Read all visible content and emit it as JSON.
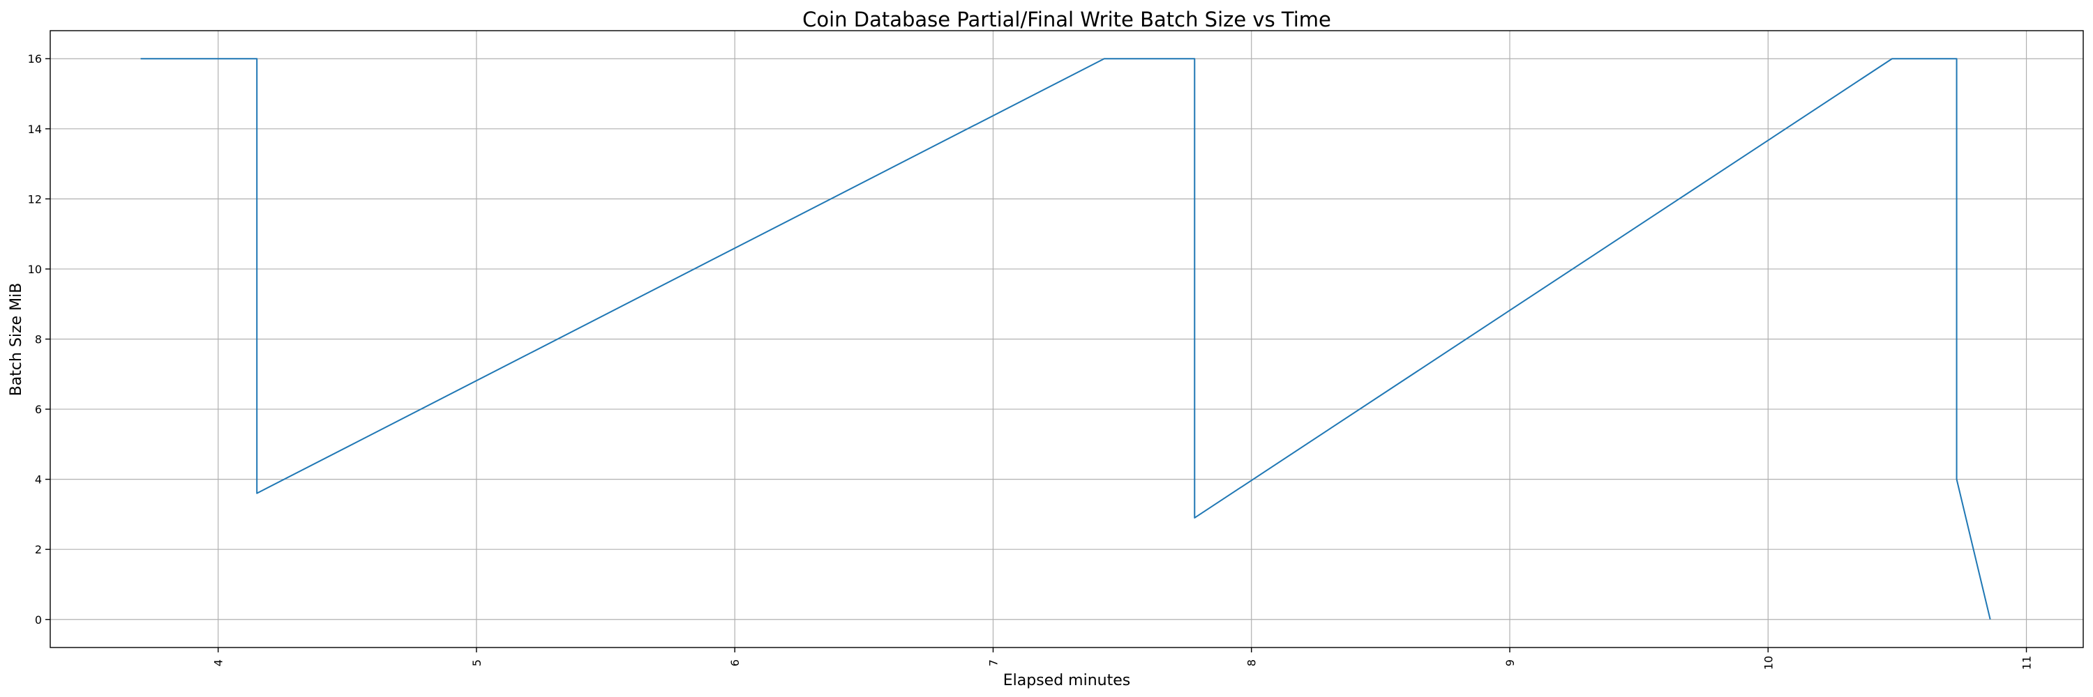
{
  "chart_data": {
    "type": "line",
    "title": "Coin Database Partial/Final Write Batch Size vs Time",
    "xlabel": "Elapsed minutes",
    "ylabel": "Batch Size MiB",
    "xlim": [
      3.35,
      11.22
    ],
    "ylim": [
      -0.8,
      16.8
    ],
    "x_ticks": [
      4,
      5,
      6,
      7,
      8,
      9,
      10,
      11
    ],
    "y_ticks": [
      0,
      2,
      4,
      6,
      8,
      10,
      12,
      14,
      16
    ],
    "grid": true,
    "series": [
      {
        "color": "#1f77b4",
        "x": [
          3.7,
          4.15,
          4.15,
          7.43,
          7.78,
          7.78,
          10.48,
          10.73,
          10.73,
          10.86
        ],
        "y": [
          16,
          16,
          3.6,
          16,
          16,
          2.9,
          16,
          16,
          4.0,
          0
        ]
      }
    ]
  }
}
